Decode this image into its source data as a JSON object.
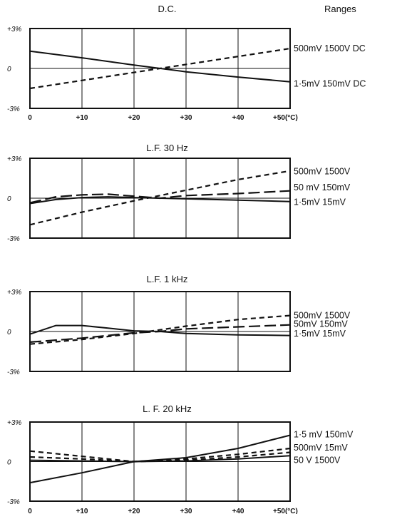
{
  "header_label": "Ranges",
  "chart_data": [
    {
      "type": "line",
      "title": "D.C.",
      "x": [
        0,
        10,
        20,
        30,
        40,
        50
      ],
      "x_tick_labels": [
        "0",
        "+10",
        "+20",
        "+30",
        "+40",
        "+50(°C)"
      ],
      "show_x_ticks": true,
      "y_tick_labels": [
        "+3%",
        "0",
        "-3%"
      ],
      "ylim": [
        -3,
        3
      ],
      "xlim": [
        0,
        50
      ],
      "grid": true,
      "series": [
        {
          "name": "500mV 1500V DC",
          "style": "dashed",
          "x": [
            0,
            10,
            20,
            30,
            40,
            50
          ],
          "values": [
            -1.5,
            -0.9,
            -0.3,
            0.3,
            0.9,
            1.5
          ]
        },
        {
          "name": "1·5mV 150mV DC",
          "style": "solid",
          "x": [
            0,
            10,
            20,
            30,
            40,
            50
          ],
          "values": [
            1.3,
            0.8,
            0.25,
            -0.25,
            -0.65,
            -1.0
          ]
        }
      ],
      "right_labels": [
        {
          "text": "500mV 1500V DC",
          "y": 1.5
        },
        {
          "text": "1·5mV 150mV DC",
          "y": -1.15
        }
      ]
    },
    {
      "type": "line",
      "title": "L.F. 30 Hz",
      "x": [
        0,
        10,
        20,
        30,
        40,
        50
      ],
      "x_tick_labels": [],
      "show_x_ticks": false,
      "y_tick_labels": [
        "+3%",
        "0",
        "-3%"
      ],
      "ylim": [
        -3,
        3
      ],
      "xlim": [
        0,
        50
      ],
      "grid": true,
      "series": [
        {
          "name": "500mV 1500V",
          "style": "dashed",
          "x": [
            0,
            10,
            20,
            30,
            40,
            50
          ],
          "values": [
            -2.0,
            -1.05,
            -0.2,
            0.6,
            1.4,
            2.05
          ]
        },
        {
          "name": "50 mV 150mV",
          "style": "longdash",
          "x": [
            0,
            5,
            10,
            15,
            20,
            25,
            30,
            40,
            50
          ],
          "values": [
            -0.35,
            0.1,
            0.25,
            0.3,
            0.15,
            0.0,
            0.2,
            0.35,
            0.55
          ]
        },
        {
          "name": "1·5mV 15mV",
          "style": "solid",
          "x": [
            0,
            5,
            10,
            15,
            20,
            25,
            30,
            40,
            50
          ],
          "values": [
            -0.4,
            -0.1,
            0.05,
            0.1,
            0.05,
            0.0,
            -0.05,
            -0.15,
            -0.25
          ]
        }
      ],
      "right_labels": [
        {
          "text": "500mV 1500V",
          "y": 2.0
        },
        {
          "text": "50 mV 150mV",
          "y": 0.8
        },
        {
          "text": "1·5mV 15mV",
          "y": -0.3
        }
      ]
    },
    {
      "type": "line",
      "title": "L.F. 1 kHz",
      "x": [
        0,
        10,
        20,
        30,
        40,
        50
      ],
      "x_tick_labels": [],
      "show_x_ticks": false,
      "y_tick_labels": [
        "+3%",
        "0",
        "-3%"
      ],
      "ylim": [
        -3,
        3
      ],
      "xlim": [
        0,
        50
      ],
      "grid": true,
      "series": [
        {
          "name": "500mV 1500V",
          "style": "dashed",
          "x": [
            0,
            10,
            20,
            30,
            40,
            50
          ],
          "values": [
            -0.95,
            -0.6,
            -0.15,
            0.4,
            0.9,
            1.2
          ]
        },
        {
          "name": "50 mV 150mV",
          "style": "longdash",
          "x": [
            0,
            10,
            20,
            25,
            30,
            40,
            50
          ],
          "values": [
            -0.8,
            -0.5,
            -0.1,
            0.0,
            0.2,
            0.35,
            0.5
          ]
        },
        {
          "name": "1·5mV 15mV",
          "style": "solid",
          "x": [
            0,
            5,
            10,
            15,
            20,
            25,
            30,
            40,
            50
          ],
          "values": [
            -0.2,
            0.45,
            0.45,
            0.25,
            0.05,
            0.0,
            -0.15,
            -0.25,
            -0.3
          ]
        }
      ],
      "right_labels": [
        {
          "text": "500mV 1500V",
          "y": 1.2
        },
        {
          "text": "50mV 150mV",
          "y": 0.55
        },
        {
          "text": "1·5mV 15mV",
          "y": -0.15
        }
      ]
    },
    {
      "type": "line",
      "title": "L. F. 20 kHz",
      "x": [
        0,
        10,
        20,
        30,
        40,
        50
      ],
      "x_tick_labels": [
        "0",
        "+10",
        "+20",
        "+30",
        "+40",
        "+50(°C)"
      ],
      "show_x_ticks": true,
      "y_tick_labels": [
        "+3%",
        "0",
        "-3%"
      ],
      "ylim": [
        -3,
        3
      ],
      "xlim": [
        0,
        50
      ],
      "grid": true,
      "series": [
        {
          "name": "1·5 mV 150mV",
          "style": "solid",
          "x": [
            0,
            10,
            20,
            30,
            40,
            50
          ],
          "values": [
            -1.6,
            -0.85,
            0.0,
            0.3,
            1.0,
            2.0
          ]
        },
        {
          "name": "500mV 15mV",
          "style": "dashed",
          "x": [
            0,
            10,
            20,
            30,
            40,
            50
          ],
          "values": [
            0.8,
            0.4,
            0.0,
            0.2,
            0.55,
            1.0
          ]
        },
        {
          "name": "50 V 1500V",
          "style": "dashed",
          "x": [
            0,
            10,
            20,
            30,
            40,
            50
          ],
          "values": [
            0.35,
            0.2,
            0.0,
            0.1,
            0.35,
            0.7
          ]
        },
        {
          "name": "",
          "style": "solid",
          "x": [
            0,
            10,
            20,
            30,
            40,
            50
          ],
          "values": [
            0.1,
            0.05,
            0.0,
            0.05,
            0.2,
            0.45
          ]
        }
      ],
      "right_labels": [
        {
          "text": "1·5 mV 150mV",
          "y": 2.05
        },
        {
          "text": "500mV 15mV",
          "y": 1.05
        },
        {
          "text": "50 V 1500V",
          "y": 0.1
        }
      ]
    }
  ]
}
